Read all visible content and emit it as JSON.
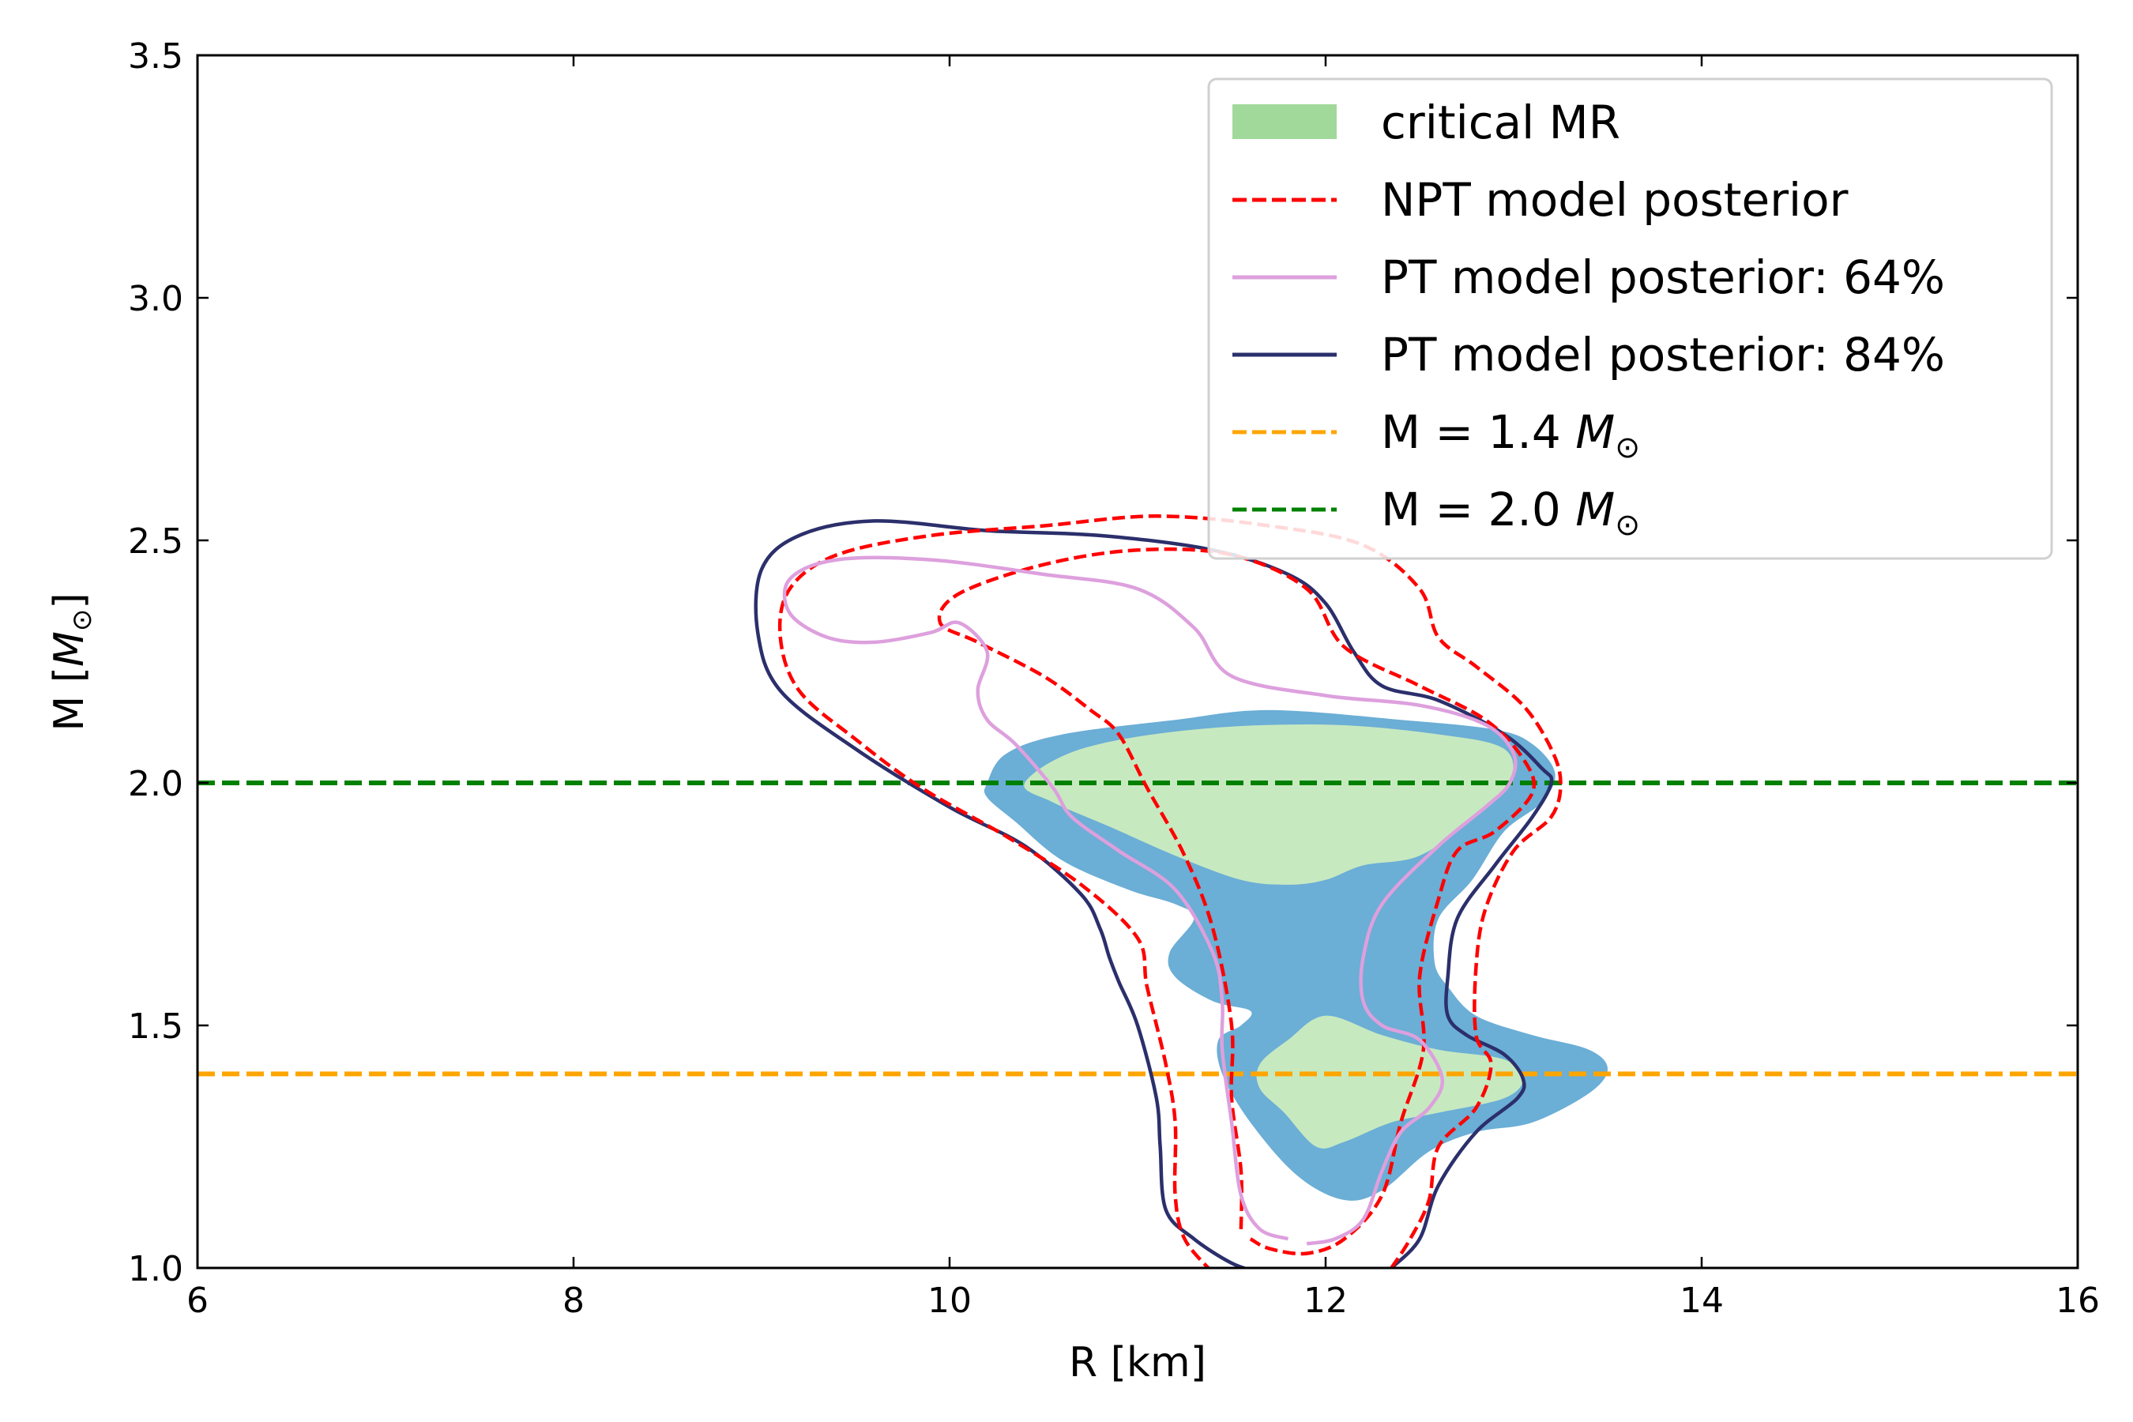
{
  "chart_data": {
    "type": "contour",
    "xlabel": "R [km]",
    "ylabel_main": "M [",
    "ylabel_sym": "M",
    "ylabel_sub": "⊙",
    "ylabel_end": "]",
    "xlim": [
      6,
      16
    ],
    "ylim": [
      1.0,
      3.5
    ],
    "xticks": [
      6,
      8,
      10,
      12,
      14,
      16
    ],
    "xtick_labels": [
      "6",
      "8",
      "10",
      "12",
      "14",
      "16"
    ],
    "yticks": [
      1.0,
      1.5,
      2.0,
      2.5,
      3.0,
      3.5
    ],
    "ytick_labels": [
      "1.0",
      "1.5",
      "2.0",
      "2.5",
      "3.0",
      "3.5"
    ],
    "legend_position": "top-right",
    "colors": {
      "outer_blue": "#6baed6",
      "inner_green": "#c7e9c0",
      "legend_green": "#a1d99b",
      "npt": "#ff0000",
      "pt64": "#dda0dd",
      "pt84": "#2b2f6b",
      "m14": "#ffa500",
      "m20": "#008000"
    },
    "legend": [
      {
        "label": "critical MR",
        "kind": "patch",
        "color_key": "legend_green"
      },
      {
        "label": "NPT model posterior",
        "kind": "dashed",
        "color_key": "npt"
      },
      {
        "label": "PT model posterior: 64%",
        "kind": "solid",
        "color_key": "pt64"
      },
      {
        "label": "PT model posterior: 84%",
        "kind": "solid",
        "color_key": "pt84"
      },
      {
        "label_prefix": "M = 1.4 ",
        "sym": "M",
        "sub": "⊙",
        "kind": "dashed",
        "color_key": "m14"
      },
      {
        "label_prefix": "M = 2.0 ",
        "sym": "M",
        "sub": "⊙",
        "kind": "dashed",
        "color_key": "m20"
      }
    ],
    "hlines": [
      {
        "name": "m-1.4-line",
        "y": 1.4,
        "color_key": "m14"
      },
      {
        "name": "m-2.0-line",
        "y": 2.0,
        "color_key": "m20"
      }
    ],
    "regions": [
      {
        "name": "critical-mr-outer-region",
        "color_key": "outer_blue",
        "points": [
          [
            10.2,
            2.0
          ],
          [
            10.3,
            2.06
          ],
          [
            10.6,
            2.1
          ],
          [
            11.2,
            2.13
          ],
          [
            11.7,
            2.15
          ],
          [
            12.4,
            2.13
          ],
          [
            12.9,
            2.11
          ],
          [
            13.1,
            2.08
          ],
          [
            13.22,
            2.02
          ],
          [
            13.15,
            1.96
          ],
          [
            12.95,
            1.9
          ],
          [
            12.78,
            1.8
          ],
          [
            12.6,
            1.72
          ],
          [
            12.58,
            1.63
          ],
          [
            12.65,
            1.58
          ],
          [
            12.8,
            1.52
          ],
          [
            13.1,
            1.48
          ],
          [
            13.4,
            1.45
          ],
          [
            13.5,
            1.41
          ],
          [
            13.4,
            1.36
          ],
          [
            13.1,
            1.3
          ],
          [
            12.8,
            1.28
          ],
          [
            12.55,
            1.24
          ],
          [
            12.3,
            1.16
          ],
          [
            12.1,
            1.14
          ],
          [
            11.85,
            1.19
          ],
          [
            11.6,
            1.3
          ],
          [
            11.45,
            1.4
          ],
          [
            11.43,
            1.47
          ],
          [
            11.55,
            1.5
          ],
          [
            11.6,
            1.53
          ],
          [
            11.4,
            1.55
          ],
          [
            11.2,
            1.6
          ],
          [
            11.17,
            1.65
          ],
          [
            11.3,
            1.72
          ],
          [
            11.2,
            1.75
          ],
          [
            10.95,
            1.78
          ],
          [
            10.6,
            1.84
          ],
          [
            10.35,
            1.92
          ],
          [
            10.2,
            1.97
          ]
        ]
      },
      {
        "name": "critical-mr-inner-upper-region",
        "color_key": "inner_green",
        "points": [
          [
            10.4,
            2.0
          ],
          [
            10.7,
            2.07
          ],
          [
            11.3,
            2.11
          ],
          [
            12.0,
            2.12
          ],
          [
            12.6,
            2.1
          ],
          [
            12.95,
            2.07
          ],
          [
            12.98,
            2.0
          ],
          [
            12.8,
            1.93
          ],
          [
            12.5,
            1.85
          ],
          [
            12.2,
            1.83
          ],
          [
            12.0,
            1.8
          ],
          [
            11.8,
            1.79
          ],
          [
            11.55,
            1.8
          ],
          [
            11.2,
            1.85
          ],
          [
            10.85,
            1.91
          ],
          [
            10.55,
            1.96
          ]
        ]
      },
      {
        "name": "critical-mr-inner-lower-region",
        "color_key": "inner_green",
        "points": [
          [
            11.65,
            1.42
          ],
          [
            11.8,
            1.47
          ],
          [
            12.0,
            1.52
          ],
          [
            12.3,
            1.48
          ],
          [
            12.6,
            1.45
          ],
          [
            12.95,
            1.43
          ],
          [
            13.05,
            1.39
          ],
          [
            12.95,
            1.35
          ],
          [
            12.6,
            1.32
          ],
          [
            12.35,
            1.3
          ],
          [
            12.1,
            1.26
          ],
          [
            11.95,
            1.25
          ],
          [
            11.78,
            1.32
          ],
          [
            11.65,
            1.37
          ]
        ]
      }
    ],
    "contours": [
      {
        "name": "pt-84-contour",
        "color_key": "pt84",
        "dashed": false,
        "closed": false,
        "points": [
          [
            11.65,
            0.99
          ],
          [
            11.5,
            1.01
          ],
          [
            11.3,
            1.06
          ],
          [
            11.15,
            1.12
          ],
          [
            11.12,
            1.25
          ],
          [
            11.1,
            1.35
          ],
          [
            11.0,
            1.5
          ],
          [
            10.9,
            1.59
          ],
          [
            10.85,
            1.64
          ],
          [
            10.8,
            1.7
          ],
          [
            10.7,
            1.77
          ],
          [
            10.4,
            1.87
          ],
          [
            10.0,
            1.95
          ],
          [
            9.5,
            2.07
          ],
          [
            9.1,
            2.19
          ],
          [
            8.98,
            2.31
          ],
          [
            9.0,
            2.44
          ],
          [
            9.2,
            2.51
          ],
          [
            9.6,
            2.54
          ],
          [
            10.2,
            2.52
          ],
          [
            10.8,
            2.51
          ],
          [
            11.4,
            2.48
          ],
          [
            11.8,
            2.43
          ],
          [
            12.0,
            2.37
          ],
          [
            12.15,
            2.27
          ],
          [
            12.3,
            2.2
          ],
          [
            12.6,
            2.17
          ],
          [
            12.95,
            2.1
          ],
          [
            13.15,
            2.03
          ],
          [
            13.2,
            2.0
          ],
          [
            13.1,
            1.93
          ],
          [
            12.9,
            1.83
          ],
          [
            12.7,
            1.72
          ],
          [
            12.65,
            1.6
          ],
          [
            12.65,
            1.52
          ],
          [
            12.75,
            1.48
          ],
          [
            12.95,
            1.44
          ],
          [
            13.05,
            1.39
          ],
          [
            13.02,
            1.35
          ],
          [
            12.8,
            1.28
          ],
          [
            12.6,
            1.17
          ],
          [
            12.5,
            1.06
          ],
          [
            12.35,
            1.0
          ]
        ]
      },
      {
        "name": "npt-outer-contour",
        "color_key": "npt",
        "dashed": true,
        "closed": false,
        "points": [
          [
            11.4,
            0.99
          ],
          [
            11.25,
            1.06
          ],
          [
            11.2,
            1.15
          ],
          [
            11.2,
            1.3
          ],
          [
            11.15,
            1.42
          ],
          [
            11.05,
            1.58
          ],
          [
            11.0,
            1.68
          ],
          [
            10.7,
            1.79
          ],
          [
            10.3,
            1.89
          ],
          [
            9.85,
            1.99
          ],
          [
            9.5,
            2.09
          ],
          [
            9.2,
            2.19
          ],
          [
            9.1,
            2.3
          ],
          [
            9.15,
            2.4
          ],
          [
            9.4,
            2.47
          ],
          [
            9.9,
            2.51
          ],
          [
            10.5,
            2.53
          ],
          [
            11.1,
            2.55
          ],
          [
            11.7,
            2.53
          ],
          [
            12.2,
            2.49
          ],
          [
            12.5,
            2.4
          ],
          [
            12.6,
            2.3
          ],
          [
            12.8,
            2.24
          ],
          [
            13.05,
            2.16
          ],
          [
            13.2,
            2.07
          ],
          [
            13.25,
            2.0
          ],
          [
            13.2,
            1.93
          ],
          [
            13.0,
            1.86
          ],
          [
            12.85,
            1.74
          ],
          [
            12.8,
            1.62
          ],
          [
            12.8,
            1.48
          ],
          [
            12.88,
            1.42
          ],
          [
            12.8,
            1.33
          ],
          [
            12.6,
            1.25
          ],
          [
            12.55,
            1.14
          ],
          [
            12.45,
            1.06
          ],
          [
            12.35,
            1.0
          ]
        ]
      },
      {
        "name": "npt-inner-contour",
        "color_key": "npt",
        "dashed": true,
        "closed": false,
        "points": [
          [
            11.55,
            1.08
          ],
          [
            11.55,
            1.2
          ],
          [
            11.5,
            1.35
          ],
          [
            11.5,
            1.5
          ],
          [
            11.4,
            1.7
          ],
          [
            11.25,
            1.85
          ],
          [
            11.05,
            1.99
          ],
          [
            10.9,
            2.1
          ],
          [
            10.75,
            2.15
          ],
          [
            10.5,
            2.22
          ],
          [
            10.15,
            2.29
          ],
          [
            9.95,
            2.33
          ],
          [
            10.05,
            2.39
          ],
          [
            10.5,
            2.45
          ],
          [
            11.0,
            2.48
          ],
          [
            11.5,
            2.47
          ],
          [
            11.9,
            2.4
          ],
          [
            12.1,
            2.28
          ],
          [
            12.5,
            2.2
          ],
          [
            12.85,
            2.13
          ],
          [
            13.05,
            2.05
          ],
          [
            13.1,
            1.98
          ],
          [
            12.9,
            1.9
          ],
          [
            12.7,
            1.86
          ],
          [
            12.6,
            1.76
          ],
          [
            12.5,
            1.6
          ],
          [
            12.52,
            1.45
          ],
          [
            12.4,
            1.3
          ],
          [
            12.3,
            1.15
          ],
          [
            12.1,
            1.06
          ],
          [
            11.9,
            1.03
          ],
          [
            11.7,
            1.04
          ],
          [
            11.6,
            1.06
          ]
        ]
      },
      {
        "name": "pt-64-contour",
        "color_key": "pt64",
        "dashed": false,
        "closed": false,
        "points": [
          [
            11.8,
            1.06
          ],
          [
            11.65,
            1.08
          ],
          [
            11.55,
            1.15
          ],
          [
            11.5,
            1.3
          ],
          [
            11.45,
            1.45
          ],
          [
            11.45,
            1.55
          ],
          [
            11.4,
            1.65
          ],
          [
            11.2,
            1.78
          ],
          [
            10.9,
            1.86
          ],
          [
            10.65,
            1.93
          ],
          [
            10.55,
            1.99
          ],
          [
            10.35,
            2.08
          ],
          [
            10.2,
            2.13
          ],
          [
            10.15,
            2.19
          ],
          [
            10.2,
            2.27
          ],
          [
            10.05,
            2.33
          ],
          [
            9.9,
            2.31
          ],
          [
            9.6,
            2.29
          ],
          [
            9.35,
            2.3
          ],
          [
            9.15,
            2.35
          ],
          [
            9.15,
            2.42
          ],
          [
            9.4,
            2.46
          ],
          [
            9.9,
            2.46
          ],
          [
            10.5,
            2.43
          ],
          [
            11.0,
            2.4
          ],
          [
            11.3,
            2.32
          ],
          [
            11.5,
            2.22
          ],
          [
            12.0,
            2.18
          ],
          [
            12.5,
            2.16
          ],
          [
            12.85,
            2.12
          ],
          [
            13.0,
            2.06
          ],
          [
            12.98,
            2.0
          ],
          [
            12.85,
            1.95
          ],
          [
            12.6,
            1.87
          ],
          [
            12.3,
            1.75
          ],
          [
            12.2,
            1.64
          ],
          [
            12.2,
            1.55
          ],
          [
            12.3,
            1.5
          ],
          [
            12.5,
            1.47
          ],
          [
            12.62,
            1.39
          ],
          [
            12.55,
            1.33
          ],
          [
            12.4,
            1.28
          ],
          [
            12.3,
            1.2
          ],
          [
            12.2,
            1.1
          ],
          [
            12.05,
            1.06
          ],
          [
            11.9,
            1.05
          ]
        ]
      }
    ]
  }
}
